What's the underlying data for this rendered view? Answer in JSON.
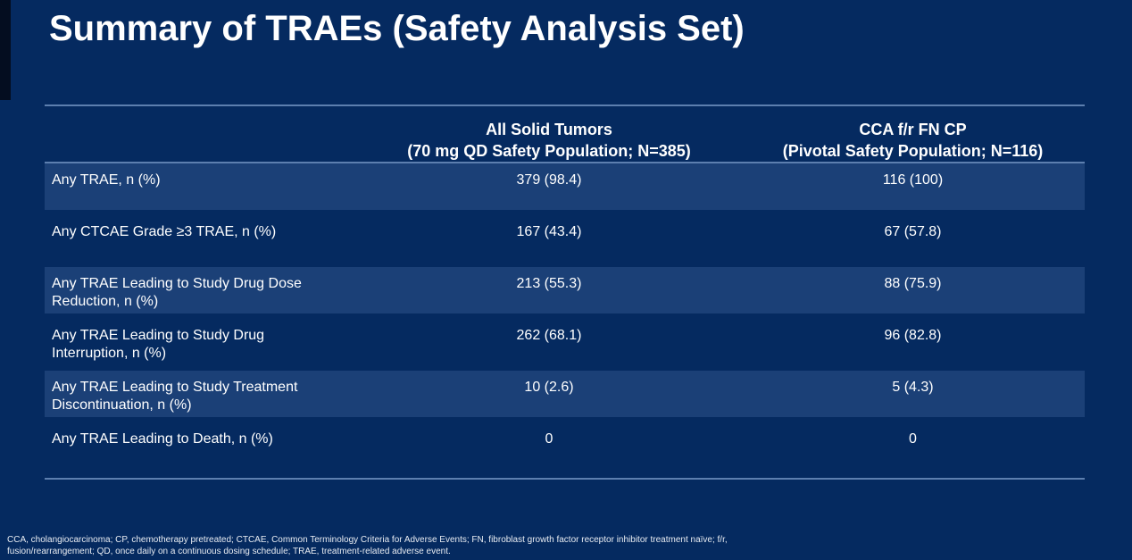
{
  "slide": {
    "title": "Summary of TRAEs (Safety Analysis Set)"
  },
  "table": {
    "columns": [
      {
        "line1": "All Solid Tumors",
        "line2": "(70 mg QD Safety Population; N=385)"
      },
      {
        "line1": "CCA f/r FN CP",
        "line2": "(Pivotal Safety Population; N=116)"
      }
    ],
    "rows": [
      {
        "label": "Any TRAE, n (%)",
        "all_solid": "379 (98.4)",
        "cca": "116 (100)"
      },
      {
        "label": "Any CTCAE Grade ≥3 TRAE, n (%)",
        "all_solid": "167 (43.4)",
        "cca": "67 (57.8)"
      },
      {
        "label": "Any TRAE Leading to Study Drug Dose Reduction, n (%)",
        "all_solid": "213 (55.3)",
        "cca": "88 (75.9)"
      },
      {
        "label": "Any TRAE Leading to Study Drug Interruption, n (%)",
        "all_solid": "262 (68.1)",
        "cca": "96 (82.8)"
      },
      {
        "label": "Any TRAE Leading to Study Treatment Discontinuation, n (%)",
        "all_solid": "10 (2.6)",
        "cca": "5 (4.3)"
      },
      {
        "label": "Any TRAE Leading to Death, n (%)",
        "all_solid": "0",
        "cca": "0"
      }
    ]
  },
  "footnote": {
    "line1": "CCA, cholangiocarcinoma; CP, chemotherapy pretreated; CTCAE, Common Terminology Criteria for Adverse Events; FN, fibroblast growth factor receptor inhibitor treatment naïve; f/r,",
    "line2": "fusion/rearrangement; QD, once daily on a continuous dosing schedule; TRAE, treatment-related adverse event."
  },
  "colors": {
    "background": "#052A60",
    "row_band": "#1B4077",
    "divider": "#5D7FAF",
    "text": "#FFFFFF",
    "footnote_text": "#E8ECF2"
  }
}
